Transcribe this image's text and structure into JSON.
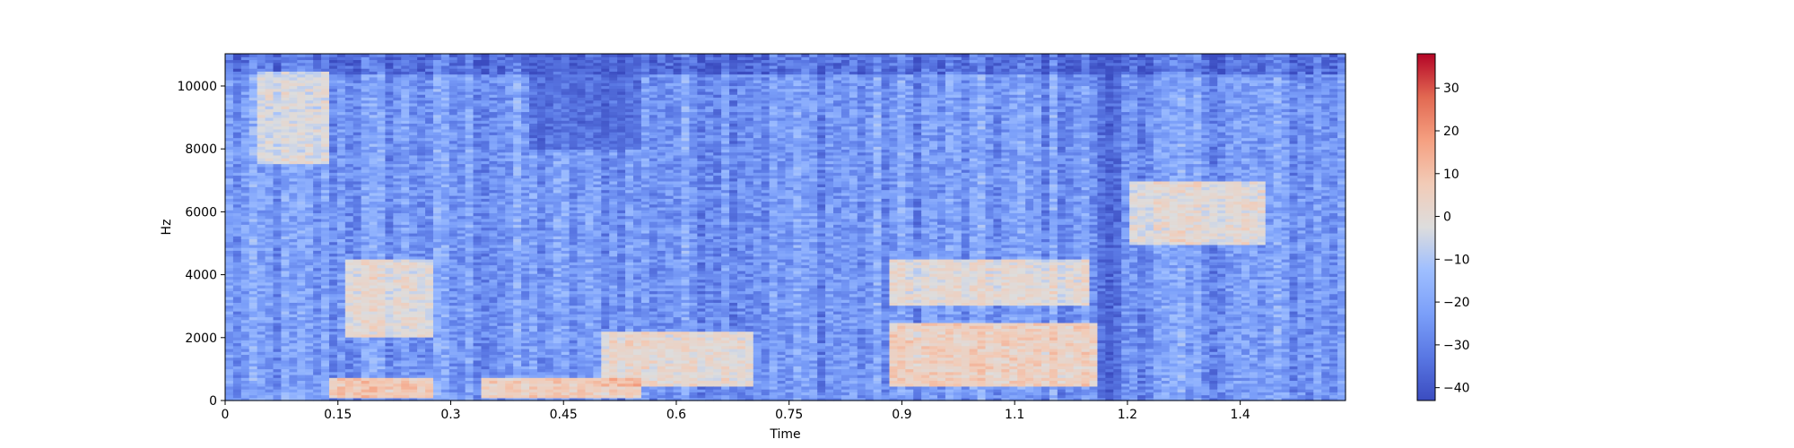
{
  "chart_data": {
    "type": "heatmap",
    "subtype": "spectrogram",
    "title": "",
    "xlabel": "Time",
    "ylabel": "Hz",
    "xlim": [
      0,
      1.49
    ],
    "ylim": [
      0,
      11025
    ],
    "xticks": [
      0,
      0.15,
      0.3,
      0.45,
      0.6,
      0.75,
      0.9,
      1.05,
      1.2,
      1.35
    ],
    "xtick_labels": [
      "0",
      "0.15",
      "0.3",
      "0.45",
      "0.6",
      "0.75",
      "0.9",
      "1.1",
      "1.2",
      "1.4"
    ],
    "yticks": [
      0,
      2000,
      4000,
      6000,
      8000,
      10000
    ],
    "ytick_labels": [
      "0",
      "2000",
      "4000",
      "6000",
      "8000",
      "10000"
    ],
    "colormap": "coolwarm",
    "colorbar": {
      "range": [
        -43,
        38
      ],
      "ticks": [
        -40,
        -30,
        -20,
        -10,
        0,
        10,
        20,
        30
      ],
      "tick_labels": [
        "−40",
        "−30",
        "−20",
        "−10",
        "0",
        "10",
        "20",
        "30"
      ]
    },
    "grid": false,
    "approximate_intensity_regions_db": [
      {
        "t": [
          0.04,
          0.14
        ],
        "hz": [
          7500,
          10500
        ],
        "db": 8
      },
      {
        "t": [
          0.16,
          0.28
        ],
        "hz": [
          2000,
          4500
        ],
        "db": 12
      },
      {
        "t": [
          0.14,
          0.28
        ],
        "hz": [
          100,
          700
        ],
        "db": 25
      },
      {
        "t": [
          0.34,
          0.55
        ],
        "hz": [
          100,
          700
        ],
        "db": 22
      },
      {
        "t": [
          0.5,
          0.7
        ],
        "hz": [
          500,
          2200
        ],
        "db": 15
      },
      {
        "t": [
          0.88,
          1.16
        ],
        "hz": [
          500,
          2500
        ],
        "db": 20
      },
      {
        "t": [
          0.88,
          1.15
        ],
        "hz": [
          3000,
          4500
        ],
        "db": 12
      },
      {
        "t": [
          1.2,
          1.38
        ],
        "hz": [
          5000,
          7000
        ],
        "db": 12
      },
      {
        "t": [
          0.4,
          0.55
        ],
        "hz": [
          8000,
          11025
        ],
        "db": -40
      },
      {
        "t": [
          1.16,
          1.19
        ],
        "hz": [
          0,
          11025
        ],
        "db": -42
      }
    ]
  }
}
